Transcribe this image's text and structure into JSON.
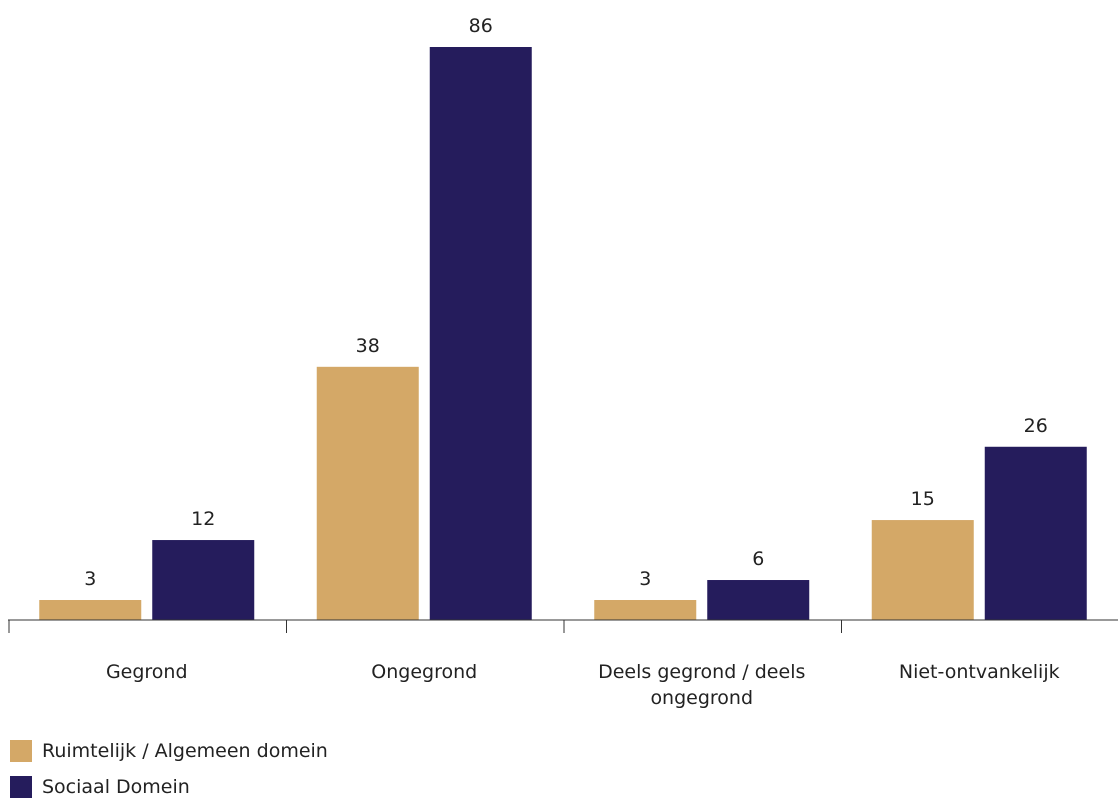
{
  "chart_data": {
    "type": "bar",
    "categories": [
      "Gegrond",
      "Ongegrond",
      "Deels gegrond / deels ongegrond",
      "Niet-ontvankelijk"
    ],
    "category_lines": [
      [
        "Gegrond"
      ],
      [
        "Ongegrond"
      ],
      [
        "Deels gegrond / deels",
        "ongegrond"
      ],
      [
        "Niet-ontvankelijk"
      ]
    ],
    "series": [
      {
        "name": "Ruimtelijk / Algemeen domein",
        "color": "#d4a867",
        "values": [
          3,
          38,
          3,
          15
        ]
      },
      {
        "name": "Sociaal Domein",
        "color": "#251c5c",
        "values": [
          12,
          86,
          6,
          26
        ]
      }
    ],
    "title": "",
    "xlabel": "",
    "ylabel": "",
    "ylim": [
      0,
      86
    ],
    "grid": false,
    "legend": "bottom-left",
    "data_labels": true
  }
}
